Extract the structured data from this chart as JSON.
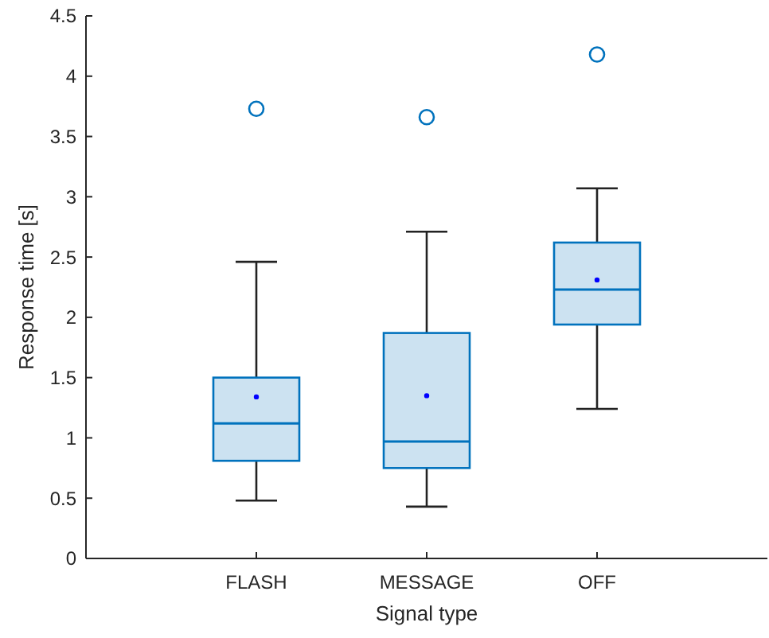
{
  "chart_data": {
    "type": "box",
    "xlabel": "Signal type",
    "ylabel": "Response time [s]",
    "categories": [
      "FLASH",
      "MESSAGE",
      "OFF"
    ],
    "ylim": [
      0,
      4.5
    ],
    "yticks": [
      0,
      0.5,
      1,
      1.5,
      2,
      2.5,
      3,
      3.5,
      4,
      4.5
    ],
    "color": "#0072bd",
    "grid": false,
    "boxes": [
      {
        "low": 0.48,
        "q1": 0.81,
        "median": 1.12,
        "q3": 1.5,
        "high": 2.46,
        "mean": 1.34,
        "outliers": [
          3.73
        ]
      },
      {
        "low": 0.43,
        "q1": 0.75,
        "median": 0.97,
        "q3": 1.87,
        "high": 2.71,
        "mean": 1.35,
        "outliers": [
          3.66
        ]
      },
      {
        "low": 1.24,
        "q1": 1.94,
        "median": 2.23,
        "q3": 2.62,
        "high": 3.07,
        "mean": 2.31,
        "outliers": [
          4.18
        ]
      }
    ]
  }
}
